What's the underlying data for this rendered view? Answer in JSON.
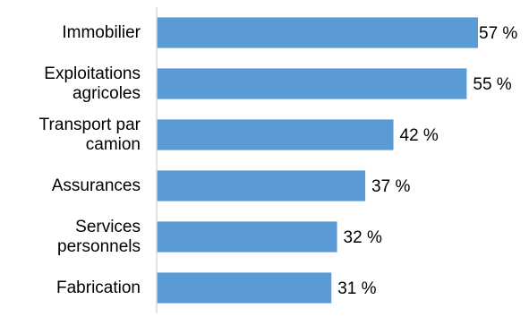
{
  "colors": {
    "bar": "#5b9bd5",
    "axis": "#d9d9d9",
    "text": "#000000",
    "background": "#ffffff"
  },
  "chart_data": {
    "type": "bar",
    "orientation": "horizontal",
    "categories": [
      [
        "Immobilier"
      ],
      [
        "Exploitations",
        "agricoles"
      ],
      [
        "Transport par",
        "camion"
      ],
      [
        "Assurances"
      ],
      [
        "Services",
        "personnels"
      ],
      [
        "Fabrication"
      ]
    ],
    "values": [
      57,
      55,
      42,
      37,
      32,
      31
    ],
    "data_labels": [
      "57 %",
      "55 %",
      "42 %",
      "37 %",
      "32 %",
      "31 %"
    ],
    "title": "",
    "xlabel": "",
    "ylabel": "",
    "xlim": [
      0,
      57
    ],
    "grid": false,
    "legend": "none"
  }
}
